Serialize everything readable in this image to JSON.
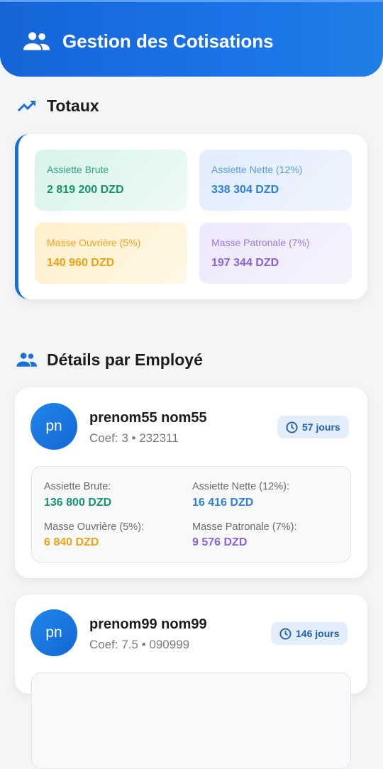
{
  "header": {
    "title": "Gestion des Cotisations"
  },
  "totals": {
    "title": "Totaux",
    "items": [
      {
        "label": "Assiette Brute",
        "value": "2 819 200 DZD"
      },
      {
        "label": "Assiette Nette (12%)",
        "value": "338 304 DZD"
      },
      {
        "label": "Masse Ouvrière (5%)",
        "value": "140 960 DZD"
      },
      {
        "label": "Masse Patronale (7%)",
        "value": "197 344 DZD"
      }
    ]
  },
  "details": {
    "title": "Détails par Employé",
    "employees": [
      {
        "initials": "pn",
        "name": "prenom55 nom55",
        "coef": "Coef: 3 • 232311",
        "days": "57 jours",
        "fields": [
          {
            "label": "Assiette Brute:",
            "value": "136 800 DZD"
          },
          {
            "label": "Assiette Nette (12%):",
            "value": "16 416 DZD"
          },
          {
            "label": "Masse Ouvrière (5%):",
            "value": "6 840 DZD"
          },
          {
            "label": "Masse Patronale (7%):",
            "value": "9 576 DZD"
          }
        ]
      },
      {
        "initials": "pn",
        "name": "prenom99 nom99",
        "coef": "Coef: 7.5 • 090999",
        "days": "146 jours"
      }
    ]
  }
}
